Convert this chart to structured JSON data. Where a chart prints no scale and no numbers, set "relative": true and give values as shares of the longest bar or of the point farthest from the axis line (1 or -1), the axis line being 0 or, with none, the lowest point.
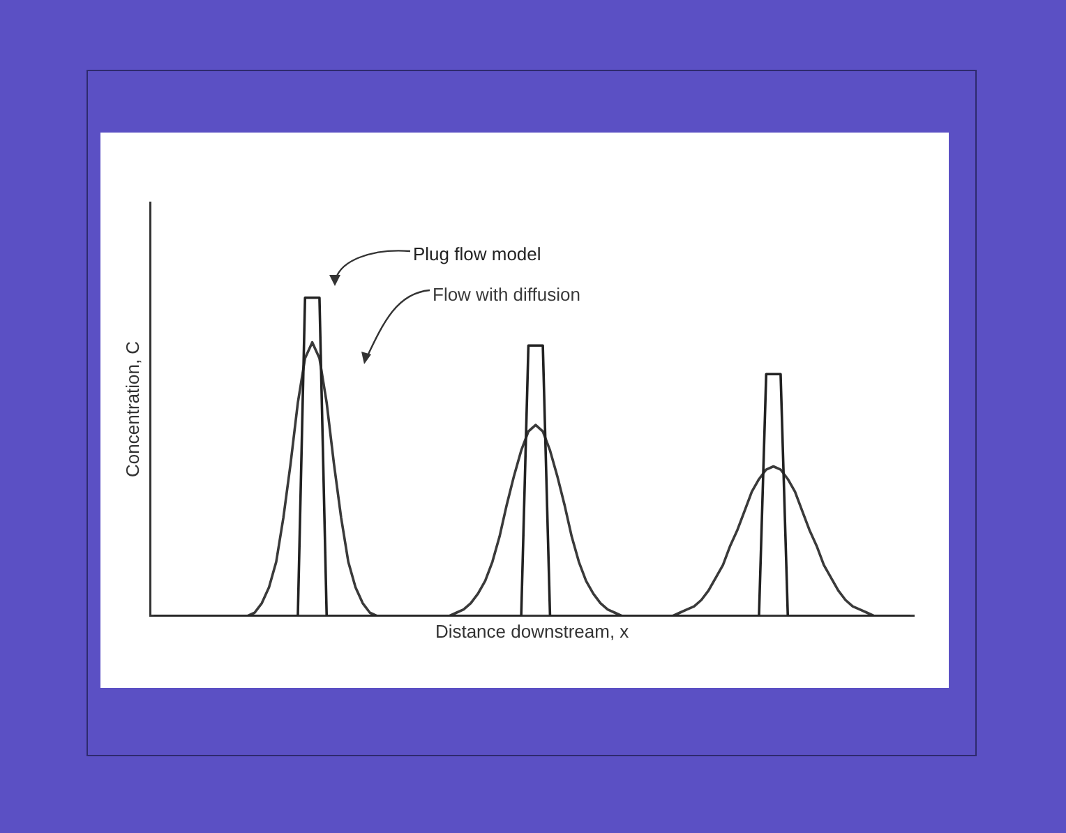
{
  "chart_data": {
    "type": "line",
    "relative": true,
    "xlabel": "Distance downstream, x",
    "ylabel": "Concentration, C",
    "categories": [
      null,
      null,
      null,
      null,
      null,
      null,
      null,
      null,
      null,
      null,
      null,
      null,
      null,
      null,
      null,
      null,
      null,
      null,
      null,
      null,
      null,
      null,
      null,
      null,
      null,
      null,
      null,
      null,
      null,
      null,
      null,
      null,
      null,
      null,
      null,
      null,
      null,
      null,
      null,
      null,
      null,
      null,
      null,
      null,
      null,
      null,
      null,
      null,
      null,
      null,
      null,
      null,
      null,
      null,
      null,
      null,
      null,
      null,
      null,
      null,
      null,
      null,
      null,
      null,
      null,
      null,
      null,
      null,
      null,
      null,
      null,
      null,
      null,
      null,
      null,
      null,
      null,
      null,
      null,
      null,
      null,
      null,
      null,
      null,
      null,
      null,
      null,
      null,
      null,
      null,
      null,
      null,
      null,
      null,
      null,
      null,
      null,
      null,
      null,
      null,
      null,
      null,
      null,
      null,
      null,
      null
    ],
    "series": [
      {
        "name": "Plug flow model",
        "color": "#222222",
        "values": [
          0,
          0,
          0,
          0,
          0,
          0,
          0,
          0,
          0,
          0,
          0,
          0,
          0,
          0,
          0,
          0,
          0,
          0,
          0,
          0,
          0,
          1,
          1,
          1,
          0,
          0,
          0,
          0,
          0,
          0,
          0,
          0,
          0,
          0,
          0,
          0,
          0,
          0,
          0,
          0,
          0,
          0,
          0,
          0,
          0,
          0,
          0,
          0,
          0,
          0,
          0,
          0,
          0.85,
          0.85,
          0.85,
          0,
          0,
          0,
          0,
          0,
          0,
          0,
          0,
          0,
          0,
          0,
          0,
          0,
          0,
          0,
          0,
          0,
          0,
          0,
          0,
          0,
          0,
          0,
          0,
          0,
          0,
          0,
          0,
          0,
          0,
          0.76,
          0.76,
          0.76,
          0,
          0,
          0,
          0,
          0,
          0,
          0,
          0,
          0,
          0,
          0,
          0,
          0,
          0,
          0,
          0,
          0,
          0
        ]
      },
      {
        "name": "Flow with diffusion",
        "color": "#3a3a3a",
        "values": [
          0,
          0,
          0,
          0,
          0,
          0,
          0,
          0,
          0,
          0,
          0,
          0,
          0,
          0,
          0.01,
          0.04,
          0.09,
          0.17,
          0.31,
          0.48,
          0.67,
          0.81,
          0.86,
          0.81,
          0.67,
          0.48,
          0.31,
          0.17,
          0.09,
          0.04,
          0.01,
          0,
          0,
          0,
          0,
          0,
          0,
          0,
          0,
          0,
          0,
          0,
          0.01,
          0.02,
          0.04,
          0.07,
          0.11,
          0.17,
          0.25,
          0.35,
          0.44,
          0.52,
          0.58,
          0.6,
          0.58,
          0.52,
          0.44,
          0.35,
          0.25,
          0.17,
          0.11,
          0.07,
          0.04,
          0.02,
          0.01,
          0,
          0,
          0,
          0,
          0,
          0,
          0,
          0,
          0.01,
          0.02,
          0.03,
          0.05,
          0.08,
          0.12,
          0.16,
          0.22,
          0.27,
          0.33,
          0.39,
          0.43,
          0.46,
          0.47,
          0.46,
          0.43,
          0.39,
          0.33,
          0.27,
          0.22,
          0.16,
          0.12,
          0.08,
          0.05,
          0.03,
          0.02,
          0.01,
          0,
          0,
          0,
          0,
          0,
          0
        ]
      }
    ],
    "legend": false,
    "grid": false,
    "marker": "none",
    "line_style": "solid"
  }
}
